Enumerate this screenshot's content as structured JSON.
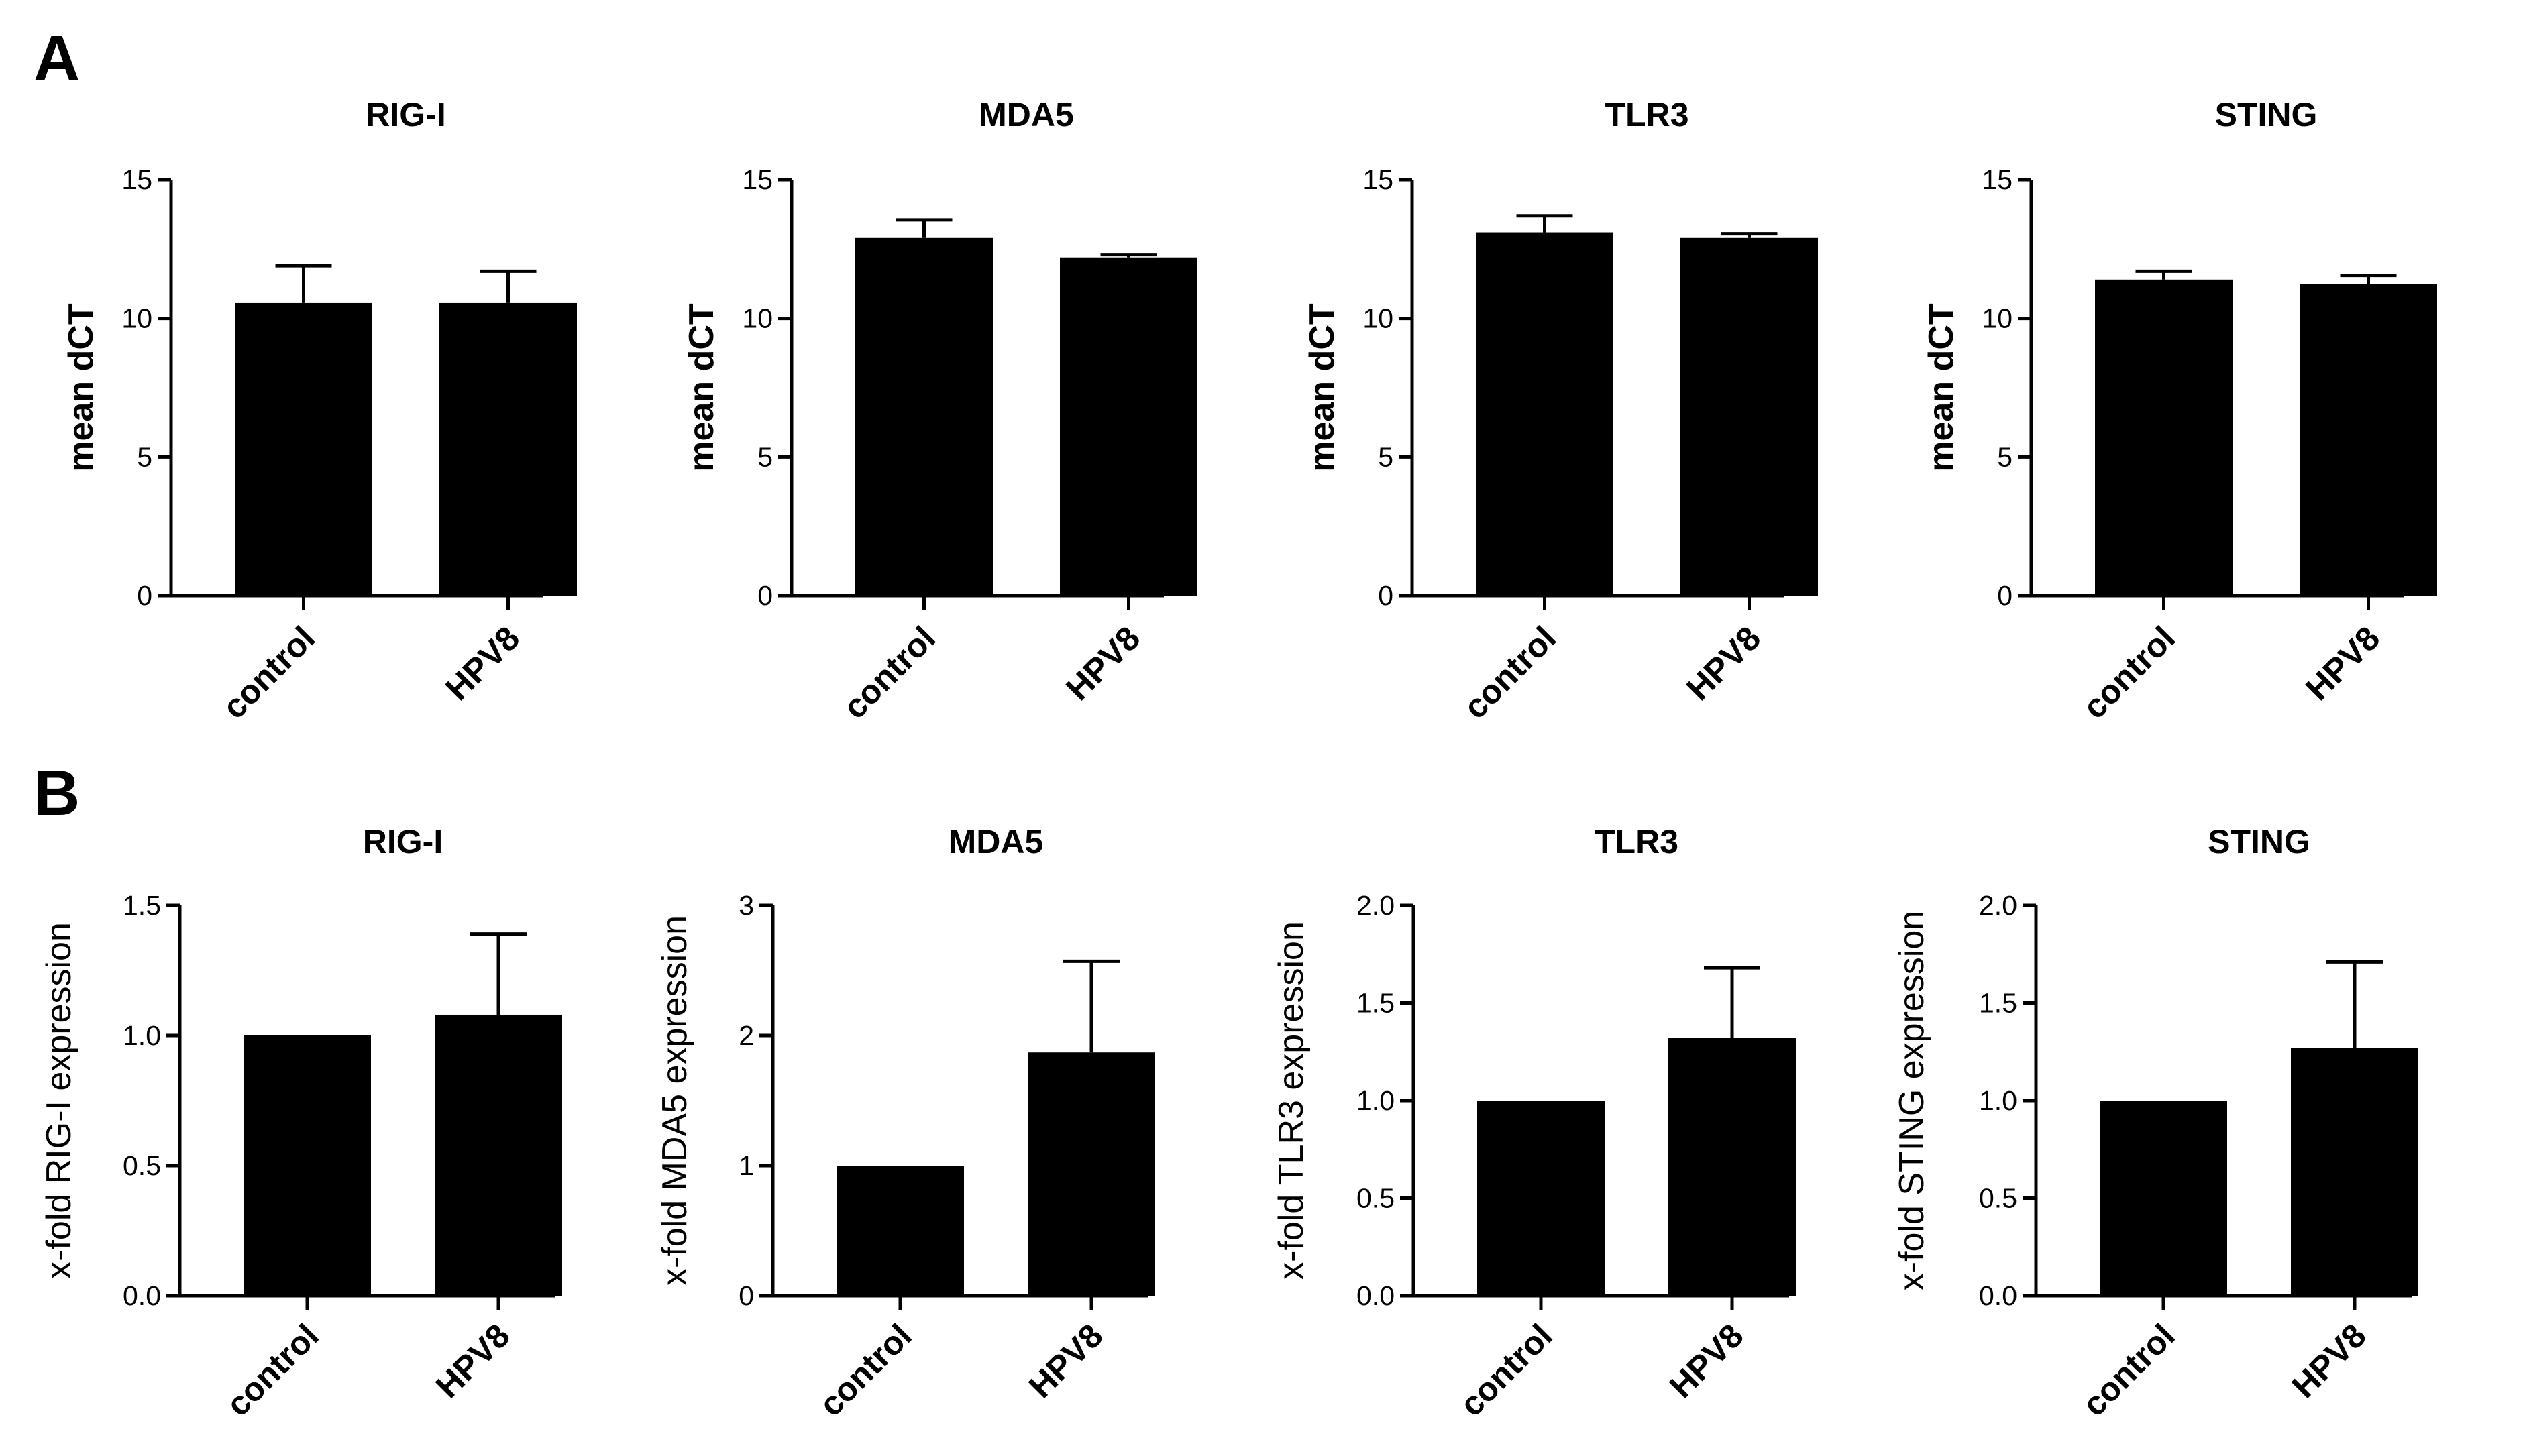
{
  "panels": [
    {
      "letter": "A"
    },
    {
      "letter": "B"
    }
  ],
  "chart_data": [
    {
      "type": "bar",
      "panel": "A",
      "title": "RIG-I",
      "xlabel": "",
      "ylabel": "mean dCT",
      "categories": [
        "control",
        "HPV8"
      ],
      "values": [
        10.55,
        10.55
      ],
      "errors": [
        1.35,
        1.15
      ],
      "ylim": [
        0,
        15
      ],
      "yticks": [
        0,
        5,
        10,
        15
      ],
      "ytick_labels": [
        "0",
        "5",
        "10",
        "15"
      ]
    },
    {
      "type": "bar",
      "panel": "A",
      "title": "MDA5",
      "xlabel": "",
      "ylabel": "mean dCT",
      "categories": [
        "control",
        "HPV8"
      ],
      "values": [
        12.9,
        12.2
      ],
      "errors": [
        0.65,
        0.1
      ],
      "ylim": [
        0,
        15
      ],
      "yticks": [
        0,
        5,
        10,
        15
      ],
      "ytick_labels": [
        "0",
        "5",
        "10",
        "15"
      ]
    },
    {
      "type": "bar",
      "panel": "A",
      "title": "TLR3",
      "xlabel": "",
      "ylabel": "mean dCT",
      "categories": [
        "control",
        "HPV8"
      ],
      "values": [
        13.1,
        12.9
      ],
      "errors": [
        0.6,
        0.15
      ],
      "ylim": [
        0,
        15
      ],
      "yticks": [
        0,
        5,
        10,
        15
      ],
      "ytick_labels": [
        "0",
        "5",
        "10",
        "15"
      ]
    },
    {
      "type": "bar",
      "panel": "A",
      "title": "STING",
      "xlabel": "",
      "ylabel": "mean dCT",
      "categories": [
        "control",
        "HPV8"
      ],
      "values": [
        11.4,
        11.25
      ],
      "errors": [
        0.3,
        0.3
      ],
      "ylim": [
        0,
        15
      ],
      "yticks": [
        0,
        5,
        10,
        15
      ],
      "ytick_labels": [
        "0",
        "5",
        "10",
        "15"
      ]
    },
    {
      "type": "bar",
      "panel": "B",
      "title": "RIG-I",
      "xlabel": "",
      "ylabel": "x-fold RIG-I expression",
      "categories": [
        "control",
        "HPV8"
      ],
      "values": [
        1.0,
        1.08
      ],
      "errors": [
        0.0,
        0.31
      ],
      "ylim": [
        0,
        1.5
      ],
      "yticks": [
        0,
        0.5,
        1.0,
        1.5
      ],
      "ytick_labels": [
        "0.0",
        "0.5",
        "1.0",
        "1.5"
      ]
    },
    {
      "type": "bar",
      "panel": "B",
      "title": "MDA5",
      "xlabel": "",
      "ylabel": "x-fold MDA5 expression",
      "categories": [
        "control",
        "HPV8"
      ],
      "values": [
        1.0,
        1.87
      ],
      "errors": [
        0.0,
        0.7
      ],
      "ylim": [
        0,
        3
      ],
      "yticks": [
        0,
        1,
        2,
        3
      ],
      "ytick_labels": [
        "0",
        "1",
        "2",
        "3"
      ]
    },
    {
      "type": "bar",
      "panel": "B",
      "title": "TLR3",
      "xlabel": "",
      "ylabel": "x-fold TLR3 expression",
      "categories": [
        "control",
        "HPV8"
      ],
      "values": [
        1.0,
        1.32
      ],
      "errors": [
        0.0,
        0.36
      ],
      "ylim": [
        0,
        2
      ],
      "yticks": [
        0,
        0.5,
        1.0,
        1.5,
        2.0
      ],
      "ytick_labels": [
        "0.0",
        "0.5",
        "1.0",
        "1.5",
        "2.0"
      ]
    },
    {
      "type": "bar",
      "panel": "B",
      "title": "STING",
      "xlabel": "",
      "ylabel": "x-fold STING expression",
      "categories": [
        "control",
        "HPV8"
      ],
      "values": [
        1.0,
        1.27
      ],
      "errors": [
        0.0,
        0.44
      ],
      "ylim": [
        0,
        2
      ],
      "yticks": [
        0,
        0.5,
        1.0,
        1.5,
        2.0
      ],
      "ytick_labels": [
        "0.0",
        "0.5",
        "1.0",
        "1.5",
        "2.0"
      ]
    }
  ],
  "colors": {
    "bar": "#000000",
    "axis": "#000000",
    "background": "#ffffff"
  }
}
